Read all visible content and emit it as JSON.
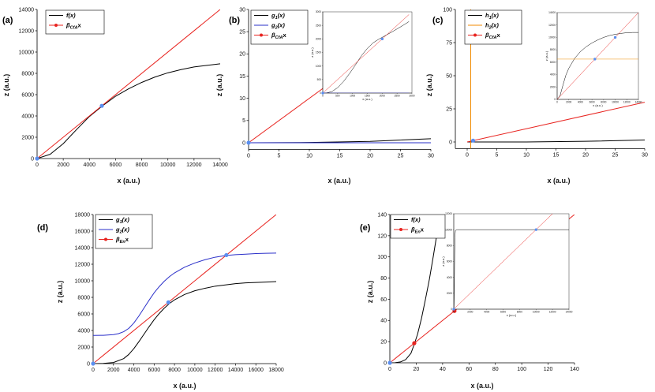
{
  "figure": {
    "colors": {
      "black": "#000000",
      "red": "#e8231f",
      "blue": "#2a2fc9",
      "orange": "#f08a00",
      "point": "#5b8ff0",
      "point_red": "#e8231f"
    }
  },
  "chart_data": [
    {
      "id": "a",
      "type": "line",
      "panel_label": "(a)",
      "xlabel": "x (a.u.)",
      "ylabel": "z (a.u.)",
      "xlim": [
        0,
        14000
      ],
      "ylim": [
        0,
        14000
      ],
      "xticks": [
        0,
        2000,
        4000,
        6000,
        8000,
        10000,
        12000,
        14000
      ],
      "yticks": [
        0,
        2000,
        4000,
        6000,
        8000,
        10000,
        12000,
        14000
      ],
      "legend": [
        "f(x)",
        "βCfAx"
      ],
      "series": [
        {
          "name": "f(x)",
          "color": "black",
          "x": [
            0,
            1000,
            2000,
            3000,
            4000,
            5000,
            6000,
            7000,
            8000,
            9000,
            10000,
            11000,
            12000,
            13000,
            14000
          ],
          "y": [
            0,
            400,
            1400,
            2700,
            3950,
            4950,
            5850,
            6550,
            7150,
            7650,
            8050,
            8350,
            8600,
            8750,
            8900
          ]
        },
        {
          "name": "βCfAx",
          "color": "red",
          "x": [
            0,
            14000
          ],
          "y": [
            0,
            14000
          ]
        }
      ],
      "points": [
        {
          "x": 0,
          "y": 0
        },
        {
          "x": 4950,
          "y": 4950
        }
      ]
    },
    {
      "id": "b",
      "type": "line",
      "panel_label": "(b)",
      "xlabel": "x (a.u.)",
      "ylabel": "z (a.u.)",
      "xlim": [
        0,
        30
      ],
      "ylim": [
        -1.5,
        30
      ],
      "xticks": [
        0,
        5,
        10,
        15,
        20,
        25,
        30
      ],
      "yticks": [
        0,
        5,
        10,
        15,
        20,
        25,
        30
      ],
      "legend": [
        "g1(x)",
        "g2(x)",
        "βCfAx"
      ],
      "series": [
        {
          "name": "g1(x)",
          "color": "black",
          "x": [
            0,
            10,
            20,
            30
          ],
          "y": [
            0,
            0.05,
            0.3,
            0.9
          ]
        },
        {
          "name": "g2(x)",
          "color": "blue",
          "x": [
            0,
            15,
            30
          ],
          "y": [
            0,
            0,
            0
          ]
        },
        {
          "name": "βCfAx",
          "color": "red",
          "x": [
            0,
            13
          ],
          "y": [
            0,
            13
          ]
        }
      ],
      "points": [
        {
          "x": 0,
          "y": 0
        }
      ],
      "inset": {
        "xlabel": "x (a.u.)",
        "ylabel": "z (a.u.)",
        "xlim": [
          0,
          3000
        ],
        "ylim": [
          0,
          3000
        ],
        "xticks": [
          0,
          500,
          1000,
          1500,
          2000,
          2500,
          3000
        ],
        "yticks": [
          0,
          500,
          1000,
          1500,
          2000,
          2500,
          3000
        ],
        "series": [
          {
            "name": "g1(x)",
            "color": "black",
            "x": [
              0,
              100,
              300,
              500,
              700,
              900,
              1100,
              1300,
              1500,
              1700,
              1900,
              2100,
              2300,
              2500,
              2700,
              2900
            ],
            "y": [
              0,
              0,
              50,
              200,
              430,
              720,
              1040,
              1380,
              1650,
              1860,
              2000,
              2120,
              2240,
              2370,
              2500,
              2640
            ]
          },
          {
            "name": "g2(x)",
            "color": "blue",
            "x": [
              0,
              2900
            ],
            "y": [
              0,
              0
            ]
          },
          {
            "name": "βCfAx",
            "color": "red",
            "x": [
              0,
              2900
            ],
            "y": [
              0,
              2900
            ]
          }
        ],
        "points": [
          {
            "x": 0,
            "y": 0
          },
          {
            "x": 2000,
            "y": 2000
          }
        ]
      }
    },
    {
      "id": "c",
      "type": "line",
      "panel_label": "(c)",
      "xlabel": "x (a.u.)",
      "ylabel": "z (a.u.)",
      "xlim": [
        -2,
        30
      ],
      "ylim": [
        -5,
        100
      ],
      "xticks": [
        0,
        5,
        10,
        15,
        20,
        25,
        30
      ],
      "yticks": [
        0,
        25,
        50,
        75,
        100
      ],
      "legend": [
        "h1(x)",
        "h2(x)",
        "βCfAx"
      ],
      "series": [
        {
          "name": "h1(x)",
          "color": "black",
          "x": [
            0,
            10,
            20,
            30
          ],
          "y": [
            0,
            0,
            0.5,
            1.5
          ]
        },
        {
          "name": "h2(x)",
          "color": "orange",
          "x": [
            0.6,
            0.6
          ],
          "y": [
            -5,
            100
          ]
        },
        {
          "name": "βCfAx",
          "color": "red",
          "x": [
            0,
            30
          ],
          "y": [
            0,
            30
          ]
        }
      ],
      "points": [
        {
          "x": 1,
          "y": 1
        }
      ],
      "inset": {
        "xlabel": "x (a.u.)",
        "ylabel": "z (a.u.)",
        "xlim": [
          0,
          14000
        ],
        "ylim": [
          0,
          14000
        ],
        "xticks": [
          0,
          2000,
          4000,
          6000,
          8000,
          10000,
          12000,
          14000
        ],
        "yticks": [
          0,
          2000,
          4000,
          6000,
          8000,
          10000,
          12000,
          14000
        ],
        "series": [
          {
            "name": "h1(x)",
            "color": "black",
            "x": [
              0,
              500,
              1000,
              1500,
              2000,
              3000,
              4000,
              5000,
              6000,
              7000,
              8000,
              9000,
              10000,
              11000,
              12000,
              13000,
              14000
            ],
            "y": [
              0,
              600,
              2300,
              3900,
              5000,
              6600,
              7700,
              8500,
              9100,
              9600,
              10000,
              10300,
              10500,
              10650,
              10750,
              10800,
              10800
            ]
          },
          {
            "name": "h2(x)",
            "color": "orange",
            "x": [
              0,
              14000
            ],
            "y": [
              6500,
              6500
            ]
          },
          {
            "name": "βCfAx",
            "color": "red",
            "x": [
              0,
              14000
            ],
            "y": [
              0,
              14000
            ]
          }
        ],
        "points": [
          {
            "x": 6500,
            "y": 6500
          },
          {
            "x": 10000,
            "y": 10000
          }
        ]
      }
    },
    {
      "id": "d",
      "type": "line",
      "panel_label": "(d)",
      "xlabel": "x (a.u.)",
      "ylabel": "z (a.u.)",
      "xlim": [
        0,
        18000
      ],
      "ylim": [
        0,
        18000
      ],
      "xticks": [
        0,
        2000,
        4000,
        6000,
        8000,
        10000,
        12000,
        14000,
        16000,
        18000
      ],
      "yticks": [
        0,
        2000,
        4000,
        6000,
        8000,
        10000,
        12000,
        14000,
        16000,
        18000
      ],
      "legend": [
        "g1(x)",
        "g2(x)",
        "βEnx"
      ],
      "series": [
        {
          "name": "g1(x)",
          "color": "black",
          "x": [
            0,
            1000,
            2000,
            3000,
            3500,
            4000,
            4500,
            5000,
            5500,
            6000,
            6500,
            7000,
            7500,
            8000,
            9000,
            10000,
            11000,
            12000,
            13000,
            14000,
            15000,
            16000,
            17000,
            18000
          ],
          "y": [
            0,
            20,
            130,
            600,
            1100,
            1800,
            2650,
            3550,
            4450,
            5300,
            6050,
            6700,
            7250,
            7700,
            8350,
            8800,
            9100,
            9350,
            9500,
            9650,
            9750,
            9800,
            9850,
            9900
          ]
        },
        {
          "name": "g2(x)",
          "color": "blue",
          "x": [
            0,
            1000,
            2000,
            2500,
            3000,
            3500,
            4000,
            4500,
            5000,
            5500,
            6000,
            6500,
            7000,
            7500,
            8000,
            9000,
            10000,
            11000,
            12000,
            13000,
            14000,
            15000,
            16000,
            17000,
            18000
          ],
          "y": [
            3400,
            3420,
            3500,
            3620,
            3850,
            4250,
            4900,
            5750,
            6700,
            7650,
            8550,
            9300,
            9950,
            10500,
            10950,
            11650,
            12150,
            12550,
            12850,
            13050,
            13150,
            13220,
            13280,
            13320,
            13350
          ]
        },
        {
          "name": "βEnx",
          "color": "red",
          "x": [
            0,
            18000
          ],
          "y": [
            0,
            18000
          ]
        }
      ],
      "points": [
        {
          "x": 0,
          "y": 0
        },
        {
          "x": 7400,
          "y": 7400
        },
        {
          "x": 13100,
          "y": 13100
        }
      ]
    },
    {
      "id": "e",
      "type": "line",
      "panel_label": "(e)",
      "xlabel": "x (a.u.)",
      "ylabel": "z (a.u.)",
      "xlim": [
        0,
        140
      ],
      "ylim": [
        0,
        140
      ],
      "xticks": [
        0,
        20,
        40,
        60,
        80,
        100,
        120,
        140
      ],
      "yticks": [
        0,
        20,
        40,
        60,
        80,
        100,
        120,
        140
      ],
      "legend": [
        "f(x)",
        "βEnx"
      ],
      "series": [
        {
          "name": "f(x)",
          "color": "black",
          "x": [
            0,
            4,
            8,
            12,
            16,
            18.5,
            21,
            24,
            27,
            30,
            33,
            36,
            38.3
          ],
          "y": [
            0,
            0.1,
            0.8,
            3,
            9,
            17.5,
            27,
            42,
            60,
            79,
            101,
            124,
            140
          ]
        },
        {
          "name": "βEnx",
          "color": "red",
          "x": [
            0,
            140
          ],
          "y": [
            0,
            140
          ]
        }
      ],
      "points": [
        {
          "x": 0,
          "y": 0,
          "color": "point"
        },
        {
          "x": 18.5,
          "y": 18.5,
          "color": "point_red"
        },
        {
          "x": 49,
          "y": 49,
          "color": "point_red"
        }
      ],
      "inset": {
        "xlabel": "x (a.u.)",
        "ylabel": "z (a.u.)",
        "xlim": [
          0,
          14000
        ],
        "ylim": [
          0,
          12000
        ],
        "xticks": [
          0,
          2000,
          4000,
          6000,
          8000,
          10000,
          12000,
          14000
        ],
        "yticks": [
          0,
          2000,
          4000,
          6000,
          8000,
          10000,
          12000
        ],
        "series": [
          {
            "name": "f(x)",
            "color": "black",
            "x": [
              0,
              30,
              60,
              90,
              130,
              200,
              400,
              14000
            ],
            "y": [
              0,
              200,
              1500,
              5000,
              9000,
              9900,
              10000,
              10000
            ]
          },
          {
            "name": "βEnx",
            "color": "red",
            "x": [
              0,
              14000
            ],
            "y": [
              0,
              14000
            ]
          }
        ],
        "points": [
          {
            "x": 0,
            "y": 0
          },
          {
            "x": 10000,
            "y": 10000
          }
        ]
      }
    }
  ]
}
